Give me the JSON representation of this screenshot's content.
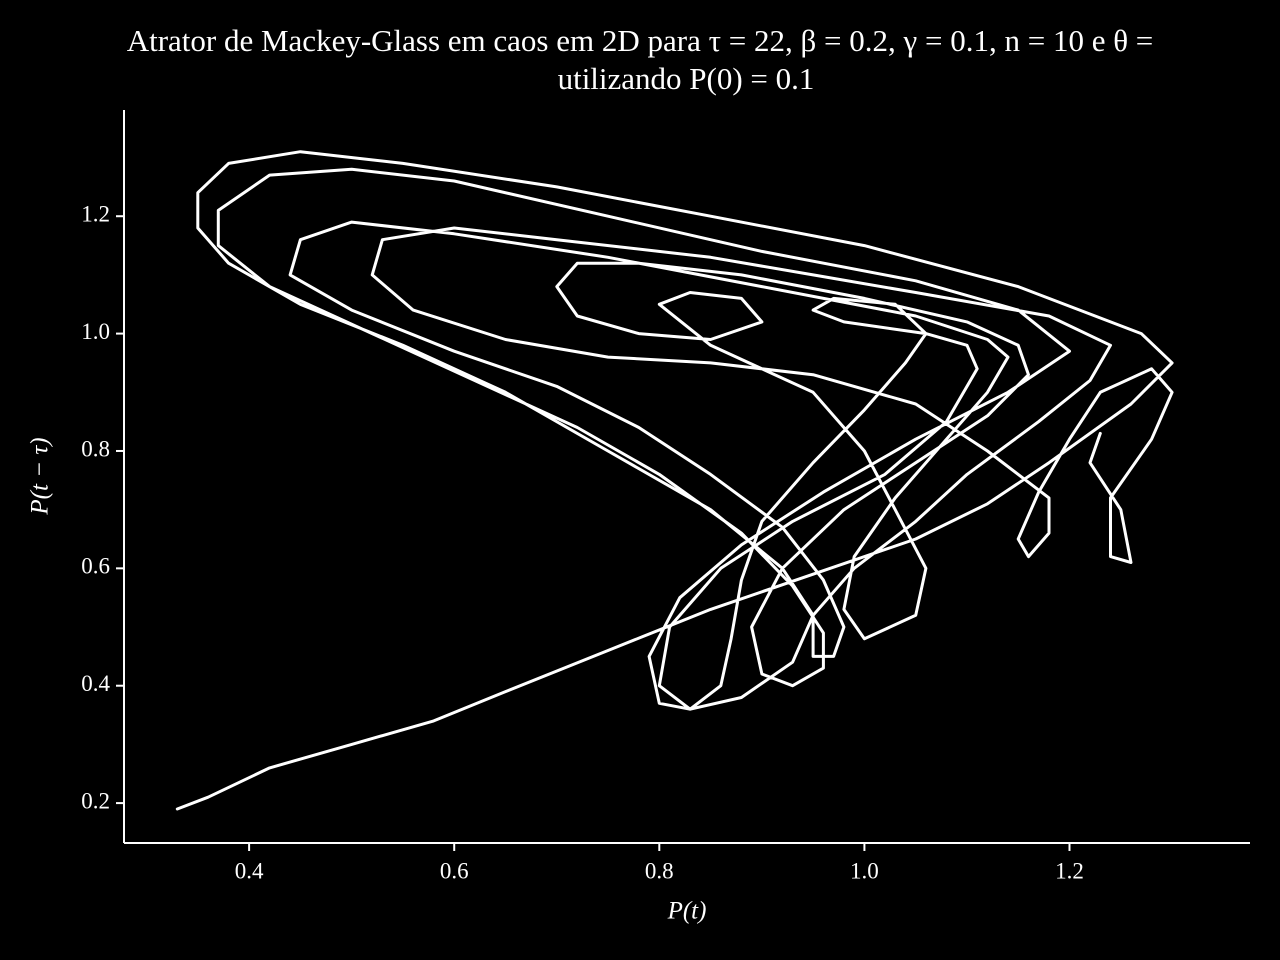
{
  "chart_data": {
    "type": "line",
    "title": [
      "Atrator de Mackey-Glass em caos em 2D para τ = 22, β = 0.2, γ = 0.1, n = 10 e θ =",
      "utilizando P(0) = 0.1"
    ],
    "xlabel": "P(t)",
    "ylabel": "P(t − τ)",
    "color": "#ffffff",
    "background": "#000000",
    "xlim": [
      0.278,
      1.376
    ],
    "ylim": [
      0.132,
      1.381
    ],
    "xticks": [
      0.4,
      0.6,
      0.8,
      {
        "value": 1,
        "label": "1.0"
      },
      1.2
    ],
    "yticks": [
      0.2,
      0.4,
      0.6,
      0.8,
      {
        "value": 1,
        "label": "1.0"
      },
      1.2
    ],
    "x": [
      0.33,
      0.36,
      0.42,
      0.5,
      0.58,
      0.65,
      0.75,
      0.85,
      0.95,
      1.05,
      1.12,
      1.18,
      1.26,
      1.3,
      1.27,
      1.15,
      1.0,
      0.85,
      0.7,
      0.55,
      0.45,
      0.38,
      0.35,
      0.35,
      0.38,
      0.45,
      0.55,
      0.65,
      0.75,
      0.85,
      0.92,
      0.95,
      0.93,
      0.88,
      0.83,
      0.8,
      0.81,
      0.86,
      0.93,
      1.02,
      1.08,
      1.11,
      1.1,
      1.06,
      0.98,
      0.95,
      0.97,
      1.03,
      1.06,
      1.04,
      1.0,
      0.95,
      0.9,
      0.88,
      0.87,
      0.86,
      0.83,
      0.8,
      0.79,
      0.82,
      0.88,
      0.96,
      1.05,
      1.14,
      1.2,
      1.15,
      1.05,
      0.9,
      0.75,
      0.6,
      0.5,
      0.42,
      0.37,
      0.37,
      0.42,
      0.52,
      0.62,
      0.72,
      0.8,
      0.88,
      0.93,
      0.96,
      0.96,
      0.93,
      0.9,
      0.89,
      0.92,
      0.98,
      1.05,
      1.12,
      1.16,
      1.15,
      1.1,
      1.0,
      0.88,
      0.78,
      0.72,
      0.7,
      0.72,
      0.78,
      0.85,
      0.9,
      0.88,
      0.83,
      0.8,
      0.85,
      0.95,
      1.0,
      1.03,
      1.06,
      1.05,
      1.0,
      0.98,
      0.99,
      1.03,
      1.08,
      1.12,
      1.14,
      1.12,
      1.05,
      0.9,
      0.75,
      0.6,
      0.5,
      0.45,
      0.44,
      0.5,
      0.6,
      0.7,
      0.78,
      0.85,
      0.92,
      0.96,
      0.98,
      0.97,
      0.95,
      0.95,
      0.99,
      1.05,
      1.1,
      1.17,
      1.22,
      1.24,
      1.18,
      1.05,
      0.95,
      0.85,
      0.7,
      0.6,
      0.53,
      0.52,
      0.56,
      0.65,
      0.75,
      0.85,
      0.95,
      1.05,
      1.12,
      1.18,
      1.18,
      1.16,
      1.15,
      1.17,
      1.2,
      1.23,
      1.28,
      1.3,
      1.28,
      1.24,
      1.24,
      1.26,
      1.25,
      1.22,
      1.23
    ],
    "values": [
      0.19,
      0.21,
      0.26,
      0.3,
      0.34,
      0.39,
      0.46,
      0.53,
      0.59,
      0.65,
      0.71,
      0.78,
      0.88,
      0.95,
      1.0,
      1.08,
      1.15,
      1.2,
      1.25,
      1.29,
      1.31,
      1.29,
      1.24,
      1.18,
      1.12,
      1.05,
      0.98,
      0.9,
      0.8,
      0.7,
      0.6,
      0.52,
      0.44,
      0.38,
      0.36,
      0.4,
      0.5,
      0.6,
      0.68,
      0.76,
      0.85,
      0.94,
      0.98,
      1.0,
      1.02,
      1.04,
      1.06,
      1.05,
      1.0,
      0.95,
      0.87,
      0.78,
      0.68,
      0.58,
      0.48,
      0.4,
      0.36,
      0.37,
      0.45,
      0.55,
      0.64,
      0.73,
      0.82,
      0.9,
      0.97,
      1.04,
      1.09,
      1.14,
      1.2,
      1.26,
      1.28,
      1.27,
      1.21,
      1.15,
      1.08,
      1.0,
      0.92,
      0.84,
      0.76,
      0.66,
      0.57,
      0.49,
      0.43,
      0.4,
      0.42,
      0.5,
      0.6,
      0.7,
      0.78,
      0.86,
      0.93,
      0.98,
      1.02,
      1.06,
      1.1,
      1.12,
      1.12,
      1.08,
      1.03,
      1.0,
      0.99,
      1.02,
      1.06,
      1.07,
      1.05,
      0.98,
      0.9,
      0.8,
      0.7,
      0.6,
      0.52,
      0.48,
      0.53,
      0.62,
      0.72,
      0.82,
      0.9,
      0.96,
      0.99,
      1.03,
      1.08,
      1.13,
      1.17,
      1.19,
      1.16,
      1.1,
      1.04,
      0.97,
      0.91,
      0.84,
      0.76,
      0.67,
      0.58,
      0.5,
      0.45,
      0.45,
      0.52,
      0.6,
      0.68,
      0.76,
      0.85,
      0.92,
      0.98,
      1.03,
      1.07,
      1.1,
      1.13,
      1.16,
      1.18,
      1.16,
      1.1,
      1.04,
      0.99,
      0.96,
      0.95,
      0.93,
      0.88,
      0.8,
      0.72,
      0.66,
      0.62,
      0.65,
      0.73,
      0.82,
      0.9,
      0.94,
      0.9,
      0.82,
      0.72,
      0.62,
      0.61,
      0.7,
      0.78,
      0.83
    ]
  }
}
